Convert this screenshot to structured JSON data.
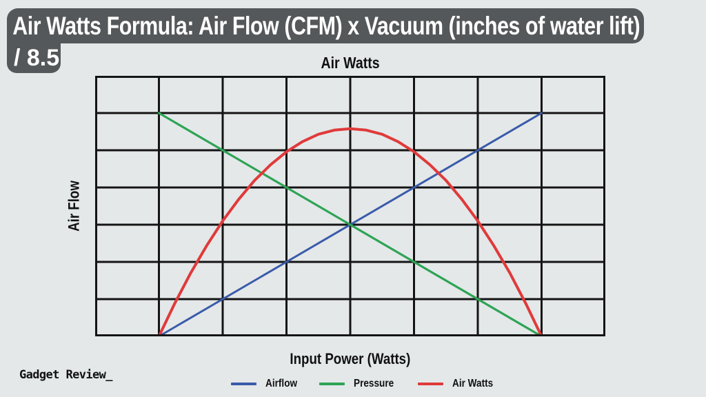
{
  "banner": {
    "line1": "Air Watts Formula: Air Flow (CFM) x Vacuum (inches of water lift)",
    "line2": "/ 8.5",
    "bg_color": "#55585A",
    "text_color": "#FFFFFF"
  },
  "watermark": "Gadget Review_",
  "colors": {
    "background": "#E4E8E9",
    "grid": "#141414",
    "airflow": "#3A5BA9",
    "pressure": "#2EA455",
    "air_watts": "#E03A3A"
  },
  "chart_data": {
    "type": "line",
    "title": "Air Watts",
    "xlabel": "Input Power (Watts)",
    "ylabel": "Air Flow",
    "xlim": [
      0,
      8
    ],
    "ylim": [
      0,
      7
    ],
    "grid": true,
    "grid_columns": 8,
    "grid_rows": 7,
    "tick_labels_visible": false,
    "legend_position": "bottom-center",
    "series": [
      {
        "name": "Airflow",
        "color": "#3A5BA9",
        "stroke_width": 3,
        "points": [
          [
            1,
            0
          ],
          [
            7,
            6
          ]
        ]
      },
      {
        "name": "Pressure",
        "color": "#2EA455",
        "stroke_width": 3.2,
        "points": [
          [
            1,
            6
          ],
          [
            7,
            0
          ]
        ]
      },
      {
        "name": "Air Watts",
        "color": "#E03A3A",
        "stroke_width": 4,
        "points": [
          [
            1,
            0
          ],
          [
            1.25,
            0.89
          ],
          [
            1.5,
            1.71
          ],
          [
            1.75,
            2.44
          ],
          [
            2,
            3.1
          ],
          [
            2.25,
            3.68
          ],
          [
            2.5,
            4.19
          ],
          [
            2.75,
            4.61
          ],
          [
            3,
            4.96
          ],
          [
            3.25,
            5.23
          ],
          [
            3.5,
            5.43
          ],
          [
            3.75,
            5.54
          ],
          [
            4,
            5.58
          ],
          [
            4.25,
            5.54
          ],
          [
            4.5,
            5.43
          ],
          [
            4.75,
            5.23
          ],
          [
            5,
            4.96
          ],
          [
            5.25,
            4.61
          ],
          [
            5.5,
            4.19
          ],
          [
            5.75,
            3.68
          ],
          [
            6,
            3.1
          ],
          [
            6.25,
            2.44
          ],
          [
            6.5,
            1.71
          ],
          [
            6.75,
            0.89
          ],
          [
            7,
            0
          ]
        ]
      }
    ]
  }
}
